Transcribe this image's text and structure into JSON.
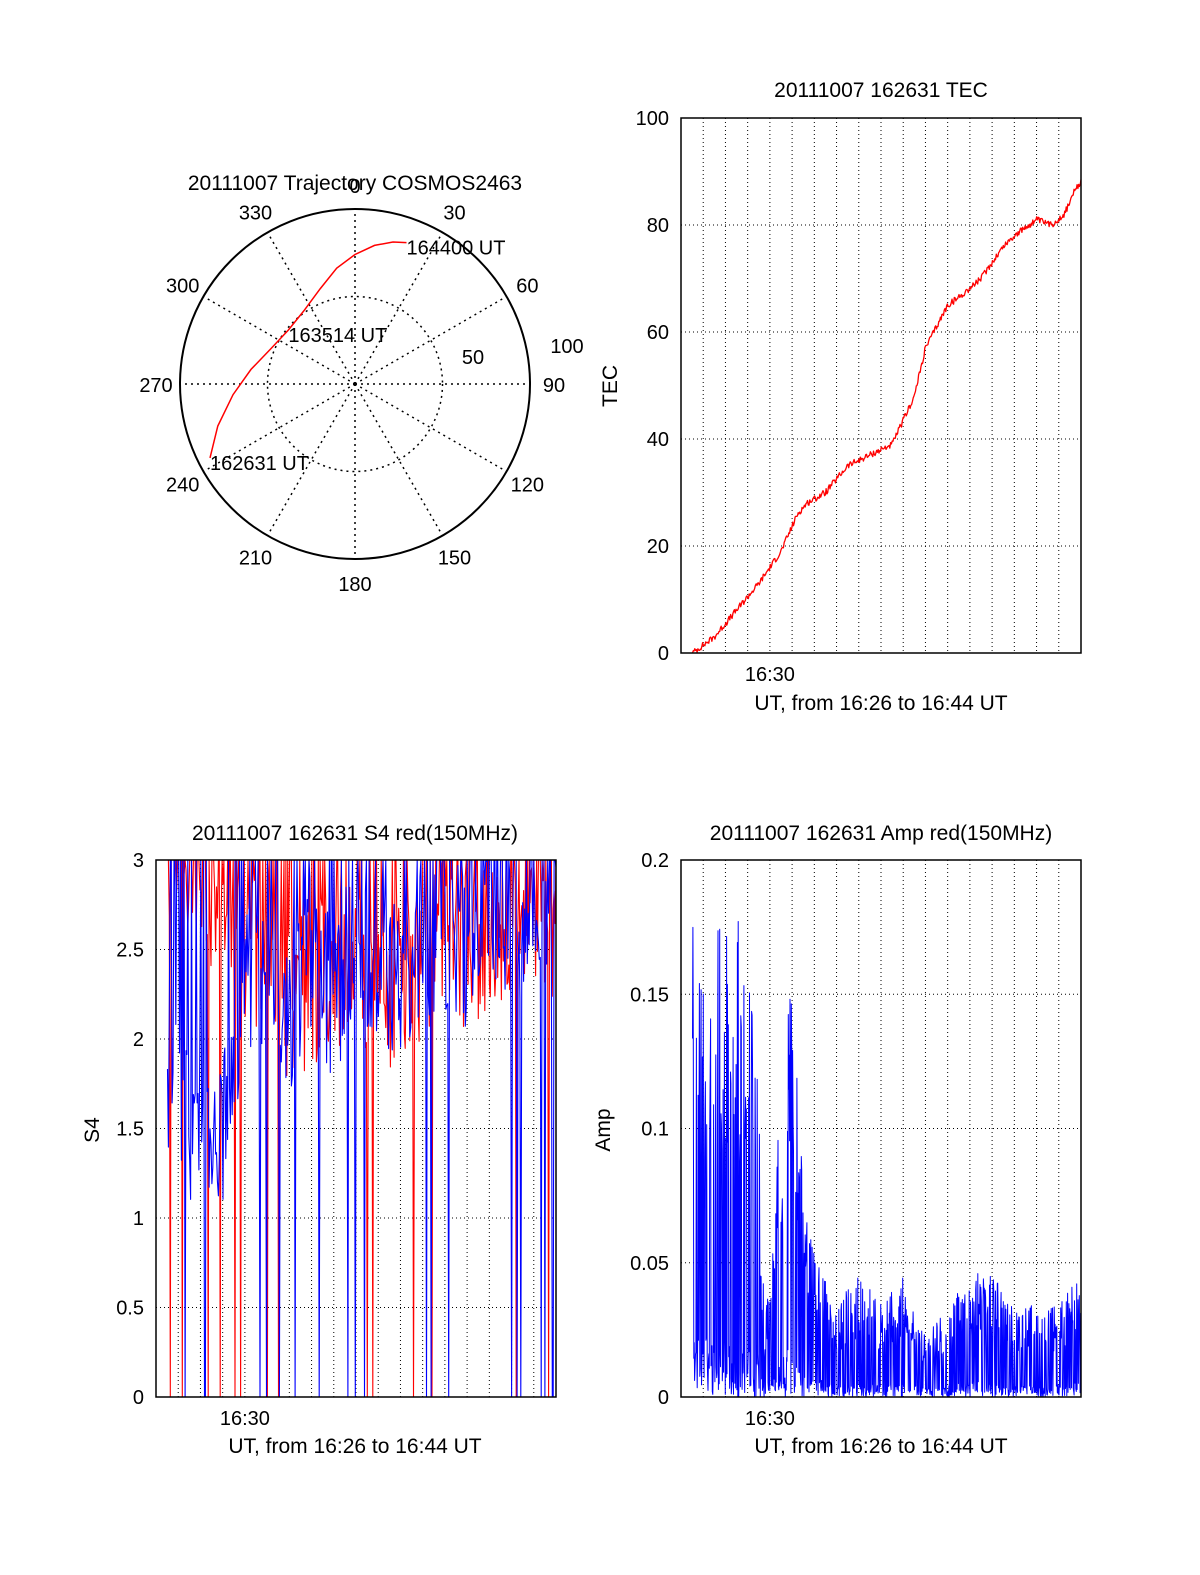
{
  "colors": {
    "red": "#ff0000",
    "blue": "#0000ff",
    "axis": "#000000",
    "grid": "#000000"
  },
  "chart_data": [
    {
      "id": "trajectory",
      "type": "polar",
      "title": "20111007 Trajectory COSMOS2463",
      "azimuth_labels": [
        "0",
        "30",
        "60",
        "90",
        "120",
        "150",
        "180",
        "210",
        "240",
        "270",
        "300",
        "330"
      ],
      "radial_labels": [
        "50",
        "100"
      ],
      "grid": true,
      "track": {
        "points": [
          {
            "az": 243,
            "r": 93
          },
          {
            "az": 253,
            "r": 82
          },
          {
            "az": 265,
            "r": 70
          },
          {
            "az": 278,
            "r": 60
          },
          {
            "az": 293,
            "r": 52
          },
          {
            "az": 309,
            "r": 49
          },
          {
            "az": 325,
            "r": 51
          },
          {
            "az": 340,
            "r": 58
          },
          {
            "az": 351,
            "r": 67
          },
          {
            "az": 360,
            "r": 74
          },
          {
            "az": 8,
            "r": 80
          },
          {
            "az": 15,
            "r": 84
          },
          {
            "az": 20,
            "r": 86
          }
        ],
        "labels": [
          {
            "text": "162631 UT",
            "az": 243,
            "r": 93
          },
          {
            "text": "163514 UT",
            "az": 309,
            "r": 49
          },
          {
            "text": "164400 UT",
            "az": 20,
            "r": 86
          }
        ]
      }
    },
    {
      "id": "tec",
      "type": "line",
      "title": "20111007 162631 TEC",
      "xlabel": "UT, from 16:26 to 16:44 UT",
      "ylabel": "TEC",
      "x_tick_labels": [
        "16:30"
      ],
      "y_ticks": [
        0,
        20,
        40,
        60,
        80,
        100
      ],
      "ylim": [
        0,
        100
      ],
      "grid": true,
      "series": [
        {
          "color": "#ff0000",
          "x": [
            "16:26:31",
            "16:27:30",
            "16:28:30",
            "16:29:30",
            "16:30:30",
            "16:31:15",
            "16:31:40",
            "16:32:30",
            "16:33:30",
            "16:34:30",
            "16:35:30",
            "16:36:30",
            "16:37:00",
            "16:38:00",
            "16:38:40",
            "16:39:30",
            "16:40:30",
            "16:41:00",
            "16:42:00",
            "16:42:40",
            "16:43:15",
            "16:43:40",
            "16:44:00"
          ],
          "y": [
            0,
            3,
            8,
            13,
            19,
            26,
            28,
            30,
            35,
            37,
            39,
            48,
            57,
            65,
            67,
            70,
            76,
            78,
            81,
            80,
            82,
            86,
            88
          ]
        }
      ]
    },
    {
      "id": "s4",
      "type": "line",
      "title": "20111007 162631 S4 red(150MHz)",
      "xlabel": "UT, from 16:26 to 16:44 UT",
      "ylabel": "S4",
      "x_tick_labels": [
        "16:30"
      ],
      "y_ticks": [
        0,
        0.5,
        1,
        1.5,
        2,
        2.5,
        3
      ],
      "y_tick_labels": [
        "0",
        "0.5",
        "1",
        "1.5",
        "2",
        "2.5",
        "3"
      ],
      "ylim": [
        0,
        3
      ],
      "grid": true,
      "series": [
        {
          "color": "#ff0000",
          "x": [
            "16:26:31",
            "16:27:00",
            "16:27:30",
            "16:28:00",
            "16:28:30",
            "16:29:00",
            "16:29:30",
            "16:30:00",
            "16:31:00",
            "16:32:00",
            "16:33:00",
            "16:34:00",
            "16:35:00",
            "16:36:00",
            "16:37:00",
            "16:38:00",
            "16:39:00",
            "16:40:00",
            "16:41:00",
            "16:42:00",
            "16:43:00",
            "16:44:00"
          ],
          "y": [
            3.0,
            3.0,
            2.9,
            3.0,
            2.8,
            3.0,
            2.6,
            2.4,
            2.5,
            2.2,
            2.3,
            2.4,
            2.4,
            2.2,
            2.3,
            2.4,
            2.6,
            2.5,
            2.6,
            2.7,
            2.8,
            2.6
          ]
        },
        {
          "color": "#0000ff",
          "x": [
            "16:26:31",
            "16:27:00",
            "16:27:30",
            "16:28:00",
            "16:28:30",
            "16:29:00",
            "16:29:30",
            "16:30:00",
            "16:31:00",
            "16:32:00",
            "16:33:00",
            "16:34:00",
            "16:35:00",
            "16:36:00",
            "16:37:00",
            "16:38:00",
            "16:39:00",
            "16:40:00",
            "16:41:00",
            "16:42:00",
            "16:43:00",
            "16:44:00"
          ],
          "y": [
            1.8,
            1.6,
            1.5,
            1.7,
            1.6,
            1.5,
            2.0,
            2.3,
            2.4,
            2.1,
            2.5,
            2.2,
            2.6,
            2.4,
            2.3,
            2.5,
            2.6,
            2.5,
            2.7,
            2.6,
            2.8,
            2.7
          ]
        }
      ]
    },
    {
      "id": "amp",
      "type": "line",
      "title": "20111007 162631 Amp red(150MHz)",
      "xlabel": "UT, from 16:26 to 16:44 UT",
      "ylabel": "Amp",
      "x_tick_labels": [
        "16:30"
      ],
      "y_ticks": [
        0,
        0.05,
        0.1,
        0.15,
        0.2
      ],
      "y_tick_labels": [
        "0",
        "0.05",
        "0.1",
        "0.15",
        "0.2"
      ],
      "ylim": [
        0,
        0.2
      ],
      "grid": true,
      "series": [
        {
          "color": "#0000ff",
          "x": [
            "16:26:31",
            "16:27:00",
            "16:27:30",
            "16:28:00",
            "16:28:30",
            "16:29:00",
            "16:29:30",
            "16:29:45",
            "16:30:30",
            "16:31:00",
            "16:31:30",
            "16:32:00",
            "16:33:00",
            "16:34:00",
            "16:35:00",
            "16:36:00",
            "16:37:00",
            "16:38:00",
            "16:39:00",
            "16:40:00",
            "16:41:00",
            "16:42:00",
            "16:43:00",
            "16:44:00"
          ],
          "y": [
            0.16,
            0.15,
            0.16,
            0.15,
            0.16,
            0.14,
            0.11,
            0.02,
            0.1,
            0.14,
            0.07,
            0.05,
            0.03,
            0.04,
            0.03,
            0.04,
            0.02,
            0.03,
            0.04,
            0.04,
            0.03,
            0.03,
            0.03,
            0.04
          ]
        }
      ]
    }
  ]
}
